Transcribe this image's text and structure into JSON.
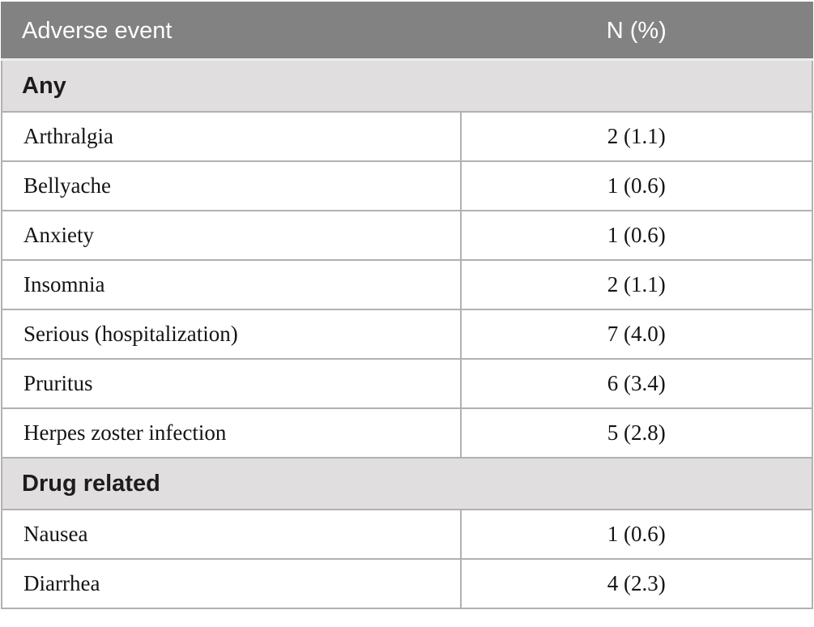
{
  "table": {
    "columns": [
      "Adverse event",
      "N (%)"
    ],
    "sections": [
      {
        "label": "Any",
        "rows": [
          {
            "event": "Arthralgia",
            "value": "2 (1.1)"
          },
          {
            "event": "Bellyache",
            "value": "1 (0.6)"
          },
          {
            "event": "Anxiety",
            "value": "1 (0.6)"
          },
          {
            "event": "Insomnia",
            "value": "2 (1.1)"
          },
          {
            "event": "Serious (hospitalization)",
            "value": "7 (4.0)"
          },
          {
            "event": "Pruritus",
            "value": "6 (3.4)"
          },
          {
            "event": "Herpes zoster infection",
            "value": "5 (2.8)"
          }
        ]
      },
      {
        "label": "Drug related",
        "rows": [
          {
            "event": "Nausea",
            "value": "1 (0.6)"
          },
          {
            "event": "Diarrhea",
            "value": "4 (2.3)"
          }
        ]
      }
    ]
  },
  "colors": {
    "header_bg": "#828282",
    "header_text": "#ffffff",
    "header_divider": "#9e9e9e",
    "section_bg": "#e0dedf",
    "row_bg": "#ffffff",
    "border": "#b2b0b1",
    "body_text": "#141414"
  }
}
